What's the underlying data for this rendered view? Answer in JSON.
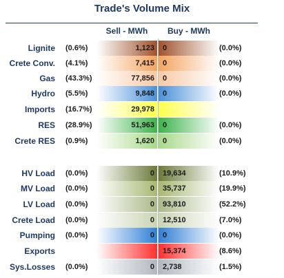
{
  "title": "Trade's Volume Mix",
  "headers": {
    "sell": "Sell - MWh",
    "buy": "Buy - MWh"
  },
  "colors": {
    "lignite": "#a0522d",
    "crete_conv": "#f4a460",
    "gas": "#f8c9a6",
    "hydro": "#4a90d9",
    "imports": "#ffff4d",
    "res": "#3cb44b",
    "crete_res": "#a8d98a",
    "hv_load": "#6b7b3a",
    "mv_load": "#a7b872",
    "lv_load": "#aab888",
    "crete_load": "#c9d4b4",
    "pumping": "#2f7fd6",
    "exports": "#ff3030",
    "sys_losses": "#b0b8c0"
  },
  "rows": [
    {
      "label": "Lignite",
      "sell_pct": "(0.6%)",
      "sell": "1,123",
      "buy": "0",
      "buy_pct": "(0.0%)"
    },
    {
      "label": "Crete Conv.",
      "sell_pct": "(4.1%)",
      "sell": "7,415",
      "buy": "0",
      "buy_pct": "(0.0%)"
    },
    {
      "label": "Gas",
      "sell_pct": "(43.3%)",
      "sell": "77,856",
      "buy": "0",
      "buy_pct": "(0.0%)"
    },
    {
      "label": "Hydro",
      "sell_pct": "(5.5%)",
      "sell": "9,848",
      "buy": "0",
      "buy_pct": "(0.0%)"
    },
    {
      "label": "Imports",
      "sell_pct": "(16.7%)",
      "sell": "29,978",
      "buy": "",
      "buy_pct": ""
    },
    {
      "label": "RES",
      "sell_pct": "(28.9%)",
      "sell": "51,963",
      "buy": "0",
      "buy_pct": "(0.0%)"
    },
    {
      "label": "Crete RES",
      "sell_pct": "(0.9%)",
      "sell": "1,620",
      "buy": "0",
      "buy_pct": "(0.0%)"
    },
    {
      "label": "HV Load",
      "sell_pct": "(0.0%)",
      "sell": "0",
      "buy": "19,634",
      "buy_pct": "(10.9%)"
    },
    {
      "label": "MV Load",
      "sell_pct": "(0.0%)",
      "sell": "0",
      "buy": "35,737",
      "buy_pct": "(19.9%)"
    },
    {
      "label": "LV Load",
      "sell_pct": "(0.0%)",
      "sell": "0",
      "buy": "93,810",
      "buy_pct": "(52.2%)"
    },
    {
      "label": "Crete Load",
      "sell_pct": "(0.0%)",
      "sell": "0",
      "buy": "12,510",
      "buy_pct": "(7.0%)"
    },
    {
      "label": "Pumping",
      "sell_pct": "(0.0%)",
      "sell": "0",
      "buy": "0",
      "buy_pct": "(0.0%)"
    },
    {
      "label": "Exports",
      "sell_pct": "",
      "sell": "",
      "buy": "15,374",
      "buy_pct": "(8.6%)"
    },
    {
      "label": "Sys.Losses",
      "sell_pct": "(0.0%)",
      "sell": "0",
      "buy": "2,738",
      "buy_pct": "(1.5%)"
    }
  ]
}
